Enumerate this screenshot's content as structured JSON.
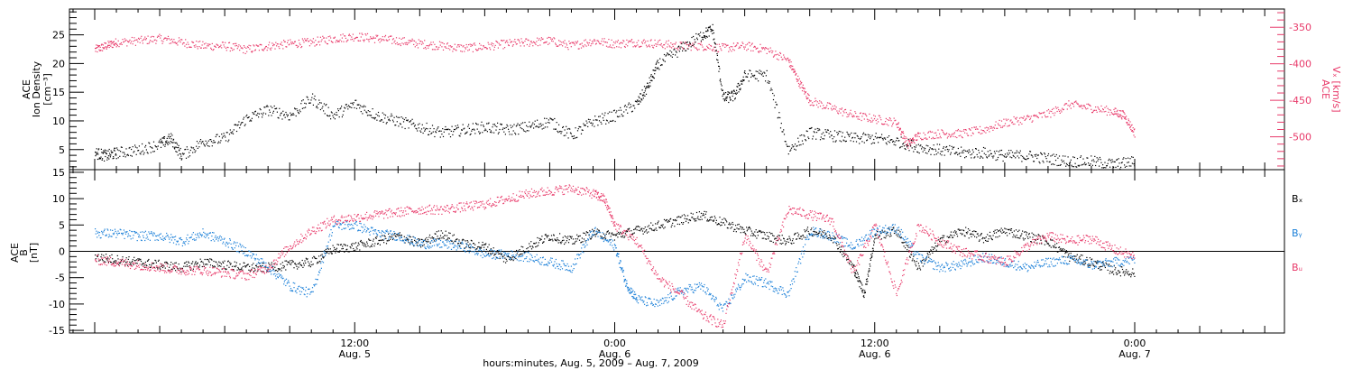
{
  "chart_data": [
    {
      "type": "scatter",
      "panel": "top",
      "ylabel_left": [
        "ACE",
        "Ion Density",
        "[cm⁻³]"
      ],
      "ylabel_right": [
        "ACE",
        "Vₓ [km/s]"
      ],
      "yticks_left": [
        5,
        10,
        15,
        20,
        25
      ],
      "yticks_right": [
        -350,
        -400,
        -450,
        -500
      ],
      "ylim_left": [
        1.5,
        29.5
      ],
      "ylim_right": [
        -545,
        -325
      ],
      "series": [
        {
          "color": "#000000",
          "axis": "left",
          "x": [
            0.0,
            0.5,
            1.0,
            2.0,
            3.0,
            3.5,
            4.0,
            5.0,
            6.0,
            7.0,
            8.0,
            9.0,
            10.0,
            11.0,
            12.0,
            13.0,
            14.0,
            15.0,
            16.0,
            17.0,
            18.0,
            19.0,
            20.0,
            21.0,
            22.0,
            23.0,
            24.0,
            25.0,
            25.5,
            26.0,
            27.0,
            28.0,
            28.5,
            29.0,
            29.5,
            30.0,
            31.0,
            32.0,
            33.0,
            34.0,
            35.0,
            36.0,
            37.0,
            38.0,
            39.0,
            40.0,
            41.0,
            42.0,
            43.0,
            44.0,
            45.0,
            46.0,
            47.0,
            48.0
          ],
          "y": [
            4.5,
            4.0,
            4.5,
            5.0,
            6.0,
            7.0,
            4.0,
            6.5,
            7.0,
            10.5,
            12.0,
            11.0,
            14.0,
            11.0,
            13.0,
            11.0,
            10.0,
            9.0,
            8.0,
            8.5,
            9.0,
            8.5,
            9.0,
            10.0,
            7.5,
            10.0,
            11.0,
            13.0,
            16.0,
            20.0,
            22.5,
            25.0,
            26.0,
            14.0,
            14.5,
            18.0,
            18.0,
            5.0,
            8.0,
            7.5,
            7.0,
            7.0,
            6.5,
            5.5,
            5.0,
            4.5,
            4.5,
            4.0,
            4.0,
            3.5,
            3.0,
            3.0,
            2.5,
            3.0
          ]
        },
        {
          "color": "#e83a6a",
          "axis": "right",
          "x": [
            0.0,
            0.5,
            1.0,
            2.0,
            3.0,
            4.0,
            5.0,
            6.0,
            7.0,
            8.0,
            9.0,
            10.0,
            11.0,
            12.0,
            13.0,
            14.0,
            15.0,
            16.0,
            17.0,
            18.0,
            19.0,
            20.0,
            21.0,
            22.0,
            23.0,
            24.0,
            25.0,
            26.0,
            27.0,
            28.0,
            29.0,
            30.0,
            31.0,
            32.0,
            32.5,
            33.0,
            34.0,
            35.0,
            36.0,
            37.0,
            37.5,
            38.0,
            39.0,
            40.0,
            41.0,
            42.0,
            43.0,
            44.0,
            45.0,
            46.0,
            47.0,
            47.5,
            48.0
          ],
          "y": [
            -380,
            -375,
            -370,
            -368,
            -365,
            -370,
            -375,
            -375,
            -380,
            -375,
            -372,
            -370,
            -365,
            -362,
            -365,
            -368,
            -372,
            -375,
            -378,
            -376,
            -372,
            -370,
            -368,
            -375,
            -368,
            -372,
            -370,
            -372,
            -375,
            -375,
            -378,
            -375,
            -380,
            -395,
            -425,
            -450,
            -460,
            -470,
            -475,
            -480,
            -510,
            -498,
            -495,
            -495,
            -490,
            -480,
            -475,
            -468,
            -455,
            -460,
            -465,
            -470,
            -495
          ]
        }
      ]
    },
    {
      "type": "scatter",
      "panel": "bottom",
      "ylabel_left": [
        "ACE",
        "B",
        "[nT]"
      ],
      "yticks_left": [
        -15,
        -10,
        -5,
        0,
        5,
        10,
        15
      ],
      "ylim_left": [
        -15.5,
        15.5
      ],
      "legend": [
        "Bₓ",
        "Bᵧ",
        "Bᵤ"
      ],
      "series": [
        {
          "color": "#000000",
          "legend_index": 0,
          "x": [
            0.0,
            1.0,
            2.0,
            3.0,
            4.0,
            5.0,
            6.0,
            7.0,
            8.0,
            9.0,
            10.0,
            11.0,
            12.0,
            13.0,
            14.0,
            15.0,
            16.0,
            17.0,
            18.0,
            19.0,
            20.0,
            21.0,
            22.0,
            23.0,
            24.0,
            25.0,
            26.0,
            27.0,
            28.0,
            29.0,
            30.0,
            31.0,
            32.0,
            33.0,
            34.0,
            35.0,
            35.5,
            36.0,
            37.0,
            38.0,
            39.0,
            40.0,
            41.0,
            42.0,
            43.0,
            44.0,
            45.0,
            46.0,
            47.0,
            48.0
          ],
          "y": [
            -1.0,
            -1.5,
            -2.0,
            -2.5,
            -3.0,
            -2.0,
            -2.5,
            -3.0,
            -3.0,
            -2.5,
            -2.0,
            0.5,
            1.0,
            2.0,
            3.0,
            1.5,
            3.5,
            1.5,
            1.0,
            -1.5,
            1.0,
            3.0,
            2.0,
            3.5,
            3.0,
            4.0,
            5.0,
            6.0,
            7.0,
            5.5,
            4.0,
            3.0,
            2.0,
            4.0,
            3.0,
            -3.0,
            -8.0,
            3.0,
            4.0,
            -3.0,
            2.0,
            4.0,
            2.5,
            4.0,
            3.0,
            2.0,
            -1.0,
            -2.0,
            -3.5,
            -4.0
          ]
        },
        {
          "color": "#1a7fd8",
          "legend_index": 1,
          "x": [
            0.0,
            1.0,
            2.0,
            3.0,
            4.0,
            5.0,
            6.0,
            7.0,
            8.0,
            9.0,
            10.0,
            11.0,
            12.0,
            13.0,
            14.0,
            15.0,
            16.0,
            17.0,
            18.0,
            19.0,
            20.0,
            21.0,
            22.0,
            23.0,
            24.0,
            24.5,
            25.0,
            26.0,
            27.0,
            28.0,
            29.0,
            30.0,
            31.0,
            32.0,
            33.0,
            34.0,
            35.0,
            36.0,
            37.0,
            38.0,
            39.0,
            40.0,
            41.0,
            42.0,
            43.0,
            44.0,
            45.0,
            46.0,
            47.0,
            48.0
          ],
          "y": [
            3.5,
            3.5,
            3.0,
            3.0,
            2.0,
            3.5,
            2.0,
            0.0,
            -3.0,
            -6.5,
            -8.0,
            5.0,
            5.0,
            3.5,
            3.0,
            1.5,
            1.5,
            1.0,
            -0.5,
            -0.5,
            -1.0,
            -2.0,
            -3.0,
            4.0,
            1.0,
            -6.0,
            -9.0,
            -10.0,
            -7.5,
            -6.5,
            -11.0,
            -5.0,
            -6.0,
            -8.0,
            4.0,
            3.0,
            1.0,
            4.0,
            4.5,
            -1.0,
            -3.0,
            -2.5,
            -1.0,
            -2.0,
            -3.0,
            -2.0,
            -1.5,
            -2.5,
            -2.0,
            -1.5
          ]
        },
        {
          "color": "#e83a6a",
          "legend_index": 2,
          "x": [
            0.0,
            1.0,
            2.0,
            3.0,
            4.0,
            5.0,
            6.0,
            7.0,
            8.0,
            9.0,
            10.0,
            11.0,
            12.0,
            13.0,
            14.0,
            15.0,
            16.0,
            17.0,
            18.0,
            19.0,
            20.0,
            21.0,
            22.0,
            23.0,
            23.5,
            24.0,
            25.0,
            26.0,
            27.0,
            28.0,
            29.0,
            30.0,
            31.0,
            32.0,
            33.0,
            34.0,
            35.0,
            36.0,
            37.0,
            38.0,
            39.0,
            40.0,
            41.0,
            42.0,
            43.0,
            44.0,
            45.0,
            46.0,
            47.0,
            48.0
          ],
          "y": [
            -1.5,
            -2.0,
            -2.5,
            -3.0,
            -3.5,
            -3.5,
            -4.0,
            -4.5,
            -3.0,
            1.0,
            4.0,
            6.0,
            6.5,
            7.0,
            7.5,
            8.0,
            8.0,
            8.5,
            9.0,
            10.0,
            11.0,
            11.5,
            12.0,
            11.0,
            10.0,
            5.0,
            2.0,
            -5.0,
            -8.0,
            -12.0,
            -14.0,
            3.0,
            -4.0,
            8.0,
            7.0,
            6.0,
            -4.0,
            5.0,
            -8.0,
            5.0,
            2.0,
            0.0,
            -1.0,
            -2.0,
            1.0,
            3.0,
            2.0,
            2.5,
            0.5,
            -1.0
          ]
        }
      ]
    }
  ],
  "x_axis": {
    "major_ticks": [
      {
        "hour": 12,
        "line1": "12:00",
        "line2": "Aug. 5"
      },
      {
        "hour": 24,
        "line1": "0:00",
        "line2": "Aug. 6"
      },
      {
        "hour": 36,
        "line1": "12:00",
        "line2": "Aug. 6"
      },
      {
        "hour": 48,
        "line1": "0:00",
        "line2": "Aug. 7"
      }
    ],
    "xlabel": "hours:minutes, Aug. 5, 2009 – Aug. 7, 2009"
  }
}
